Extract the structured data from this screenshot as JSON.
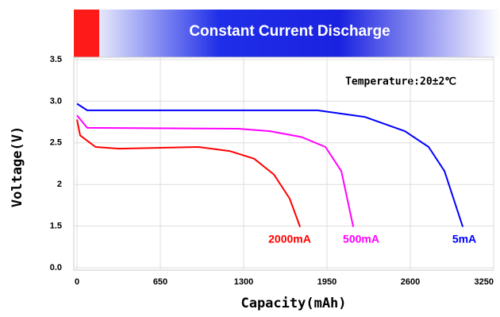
{
  "chart_data": {
    "type": "line",
    "title": "Constant Current Discharge",
    "annotation": "Temperature:20±2℃",
    "xlabel": "Capacity(mAh)",
    "ylabel": "Voltage(V)",
    "xlim": [
      0,
      3250
    ],
    "xticks": [
      0,
      650,
      1300,
      1950,
      2600,
      3250
    ],
    "ylim": [
      0,
      3.5
    ],
    "axis_break": [
      0,
      1.0
    ],
    "yticks": [
      {
        "value": 0,
        "label": "0.0"
      },
      1.5,
      2.0,
      2.5,
      {
        "value": 3.0,
        "label": "3.0"
      },
      3.5
    ],
    "grid": true,
    "series": [
      {
        "name": "2000mA",
        "color": "#ff0000",
        "x": [
          0,
          25,
          145,
          330,
          947,
          1195,
          1381,
          1536,
          1659,
          1740
        ],
        "values": [
          2.78,
          2.59,
          2.45,
          2.43,
          2.45,
          2.4,
          2.31,
          2.12,
          1.83,
          1.49
        ]
      },
      {
        "name": "500mA",
        "color": "#ff00ff",
        "x": [
          0,
          80,
          1257,
          1505,
          1752,
          1938,
          2062,
          2155
        ],
        "values": [
          2.83,
          2.68,
          2.67,
          2.64,
          2.57,
          2.45,
          2.16,
          1.49
        ]
      },
      {
        "name": "5mA",
        "color": "#0000ff",
        "x": [
          0,
          80,
          1876,
          2248,
          2557,
          2743,
          2867,
          3009
        ],
        "values": [
          2.97,
          2.89,
          2.89,
          2.81,
          2.64,
          2.45,
          2.16,
          1.49
        ]
      }
    ]
  }
}
